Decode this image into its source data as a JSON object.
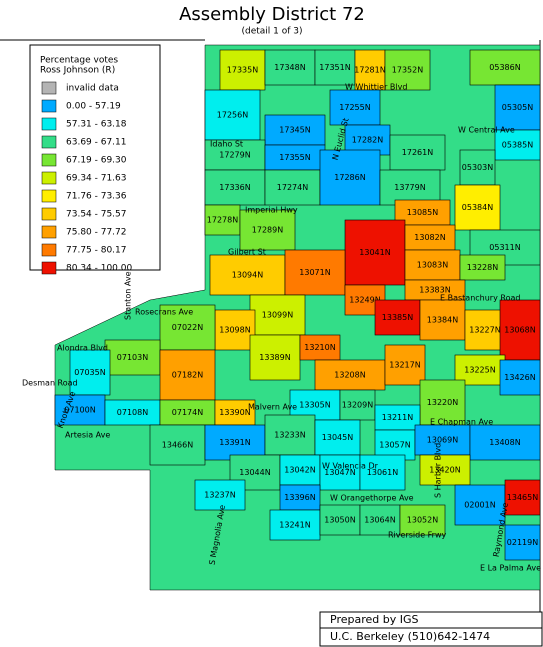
{
  "header": {
    "title": "Assembly District 72",
    "subtitle": "(detail 1 of 3)"
  },
  "legend": {
    "title": [
      "Percentage votes",
      "Ross Johnson (R)"
    ],
    "items": [
      {
        "label": "invalid data",
        "color": "#b4b4b4"
      },
      {
        "label": "0.00 - 57.19",
        "color": "#00aaff"
      },
      {
        "label": "57.31 - 63.18",
        "color": "#00eeee"
      },
      {
        "label": "63.69 - 67.11",
        "color": "#33dd88"
      },
      {
        "label": "67.19 - 69.30",
        "color": "#77e633"
      },
      {
        "label": "69.34 - 71.63",
        "color": "#ccf000"
      },
      {
        "label": "71.76 - 73.36",
        "color": "#ffee00"
      },
      {
        "label": "73.54 - 75.57",
        "color": "#ffcc00"
      },
      {
        "label": "75.80 - 77.72",
        "color": "#ffa000"
      },
      {
        "label": "77.75 - 80.17",
        "color": "#ff7a00"
      },
      {
        "label": "80.34 - 100.00",
        "color": "#ee1100"
      }
    ]
  },
  "precincts": [
    {
      "label": "17335N",
      "color": "#ccf000"
    },
    {
      "label": "17348N",
      "color": "#33dd88"
    },
    {
      "label": "17351N",
      "color": "#33dd88"
    },
    {
      "label": "17281N",
      "color": "#ffcc00"
    },
    {
      "label": "17352N",
      "color": "#77e633"
    },
    {
      "label": "05386N",
      "color": "#77e633"
    },
    {
      "label": "17256N",
      "color": "#00eeee"
    },
    {
      "label": "17255N",
      "color": "#00aaff"
    },
    {
      "label": "17345N",
      "color": "#00aaff"
    },
    {
      "label": "17282N",
      "color": "#00aaff"
    },
    {
      "label": "05305N",
      "color": "#00aaff"
    },
    {
      "label": "17279N",
      "color": "#33dd88"
    },
    {
      "label": "17355N",
      "color": "#00aaff"
    },
    {
      "label": "17261N",
      "color": "#33dd88"
    },
    {
      "label": "05385N",
      "color": "#00eeee"
    },
    {
      "label": "17336N",
      "color": "#33dd88"
    },
    {
      "label": "17274N",
      "color": "#33dd88"
    },
    {
      "label": "17286N",
      "color": "#00aaff"
    },
    {
      "label": "13779N",
      "color": "#33dd88"
    },
    {
      "label": "05303N",
      "color": "#33dd88"
    },
    {
      "label": "17278N",
      "color": "#77e633"
    },
    {
      "label": "17289N",
      "color": "#77e633"
    },
    {
      "label": "13085N",
      "color": "#ffa000"
    },
    {
      "label": "05384N",
      "color": "#ffee00"
    },
    {
      "label": "13041N",
      "color": "#ee1100"
    },
    {
      "label": "13082N",
      "color": "#ffa000"
    },
    {
      "label": "05311N",
      "color": "#33dd88"
    },
    {
      "label": "13094N",
      "color": "#ffcc00"
    },
    {
      "label": "13071N",
      "color": "#ff7a00"
    },
    {
      "label": "13083N",
      "color": "#ffa000"
    },
    {
      "label": "13228N",
      "color": "#77e633"
    },
    {
      "label": "13383N",
      "color": "#ffa000"
    },
    {
      "label": "13099N",
      "color": "#ccf000"
    },
    {
      "label": "13098N",
      "color": "#ffcc00"
    },
    {
      "label": "07022N",
      "color": "#77e633"
    },
    {
      "label": "13249N",
      "color": "#ff7a00"
    },
    {
      "label": "13385N",
      "color": "#ee1100"
    },
    {
      "label": "13384N",
      "color": "#ffa000"
    },
    {
      "label": "13227N",
      "color": "#ffcc00"
    },
    {
      "label": "13068N",
      "color": "#ee1100"
    },
    {
      "label": "13389N",
      "color": "#ccf000"
    },
    {
      "label": "13210N",
      "color": "#ff7a00"
    },
    {
      "label": "07103N",
      "color": "#77e633"
    },
    {
      "label": "07182N",
      "color": "#ffa000"
    },
    {
      "label": "13208N",
      "color": "#ffa000"
    },
    {
      "label": "13217N",
      "color": "#ffa000"
    },
    {
      "label": "13225N",
      "color": "#ccf000"
    },
    {
      "label": "13426N",
      "color": "#00aaff"
    },
    {
      "label": "07035N",
      "color": "#00eeee"
    },
    {
      "label": "07100N",
      "color": "#00aaff"
    },
    {
      "label": "07108N",
      "color": "#00eeee"
    },
    {
      "label": "07174N",
      "color": "#77e633"
    },
    {
      "label": "13390N",
      "color": "#ffcc00"
    },
    {
      "label": "13305N",
      "color": "#00eeee"
    },
    {
      "label": "13209N",
      "color": "#33dd88"
    },
    {
      "label": "13220N",
      "color": "#77e633"
    },
    {
      "label": "13211N",
      "color": "#00eeee"
    },
    {
      "label": "13466N",
      "color": "#33dd88"
    },
    {
      "label": "13391N",
      "color": "#00aaff"
    },
    {
      "label": "13233N",
      "color": "#33dd88"
    },
    {
      "label": "13045N",
      "color": "#00eeee"
    },
    {
      "label": "13057N",
      "color": "#00eeee"
    },
    {
      "label": "13069N",
      "color": "#00aaff"
    },
    {
      "label": "13408N",
      "color": "#00aaff"
    },
    {
      "label": "13044N",
      "color": "#33dd88"
    },
    {
      "label": "13042N",
      "color": "#00eeee"
    },
    {
      "label": "13047N",
      "color": "#00eeee"
    },
    {
      "label": "13061N",
      "color": "#00eeee"
    },
    {
      "label": "13420N",
      "color": "#ccf000"
    },
    {
      "label": "13237N",
      "color": "#00eeee"
    },
    {
      "label": "13396N",
      "color": "#00aaff"
    },
    {
      "label": "13241N",
      "color": "#00eeee"
    },
    {
      "label": "13050N",
      "color": "#33dd88"
    },
    {
      "label": "13064N",
      "color": "#33dd88"
    },
    {
      "label": "13052N",
      "color": "#77e633"
    },
    {
      "label": "02001N",
      "color": "#00aaff"
    },
    {
      "label": "13465N",
      "color": "#ee1100"
    },
    {
      "label": "02119N",
      "color": "#00aaff"
    }
  ],
  "streets": [
    "W Whittier Blvd",
    "Idaho St",
    "W Central Ave",
    "Imperial Hwy",
    "Gilbert St",
    "E Bastanchury Road",
    "Rosecrans Ave",
    "Stanton Ave",
    "Alondra Blvd",
    "Desman Road",
    "Knott Ave",
    "Artesia Ave",
    "Malvern Ave",
    "N Euclid St",
    "E Chapman Ave",
    "W Valencia Dr",
    "W Orangethorpe Ave",
    "S Magnolia Ave",
    "S Harbor Blvd",
    "Riverside Frwy",
    "E La Palma Ave",
    "Raymond Ave"
  ],
  "footer": {
    "line1": "Prepared by IGS",
    "line2": "U.C. Berkeley (510)642-1474"
  }
}
